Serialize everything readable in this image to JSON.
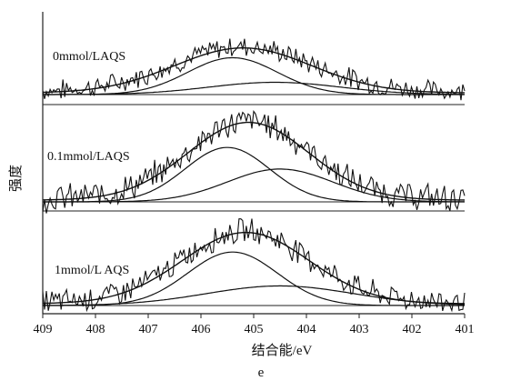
{
  "chart_data": {
    "type": "line",
    "xlabel": "结合能/eV",
    "ylabel": "强度",
    "caption": "e",
    "x_reversed": true,
    "xlim": [
      409,
      401
    ],
    "xticks": [
      409,
      408,
      407,
      406,
      405,
      404,
      403,
      402,
      401
    ],
    "xtick_labels": [
      "409",
      "408",
      "407",
      "406",
      "405",
      "404",
      "403",
      "402",
      "401"
    ],
    "panels": [
      {
        "label": "0mmol/LAQS",
        "peaks": [
          {
            "center": 405.4,
            "sigma": 0.85,
            "height": 0.45
          },
          {
            "center": 404.6,
            "sigma": 1.25,
            "height": 0.15
          }
        ],
        "envelope": {
          "center": 405.2,
          "sigma": 1.3,
          "height": 0.55
        },
        "raw_noise": 0.11
      },
      {
        "label": "0.1mmol/LAQS",
        "peaks": [
          {
            "center": 405.5,
            "sigma": 0.8,
            "height": 0.63
          },
          {
            "center": 404.5,
            "sigma": 1.0,
            "height": 0.38
          }
        ],
        "envelope": {
          "center": 405.1,
          "sigma": 1.15,
          "height": 0.9
        },
        "raw_noise": 0.14
      },
      {
        "label": "1mmol/L AQS",
        "peaks": [
          {
            "center": 405.4,
            "sigma": 0.85,
            "height": 0.6
          },
          {
            "center": 404.5,
            "sigma": 1.4,
            "height": 0.22
          }
        ],
        "envelope": {
          "center": 405.15,
          "sigma": 1.2,
          "height": 0.8
        },
        "raw_noise": 0.12
      }
    ]
  }
}
